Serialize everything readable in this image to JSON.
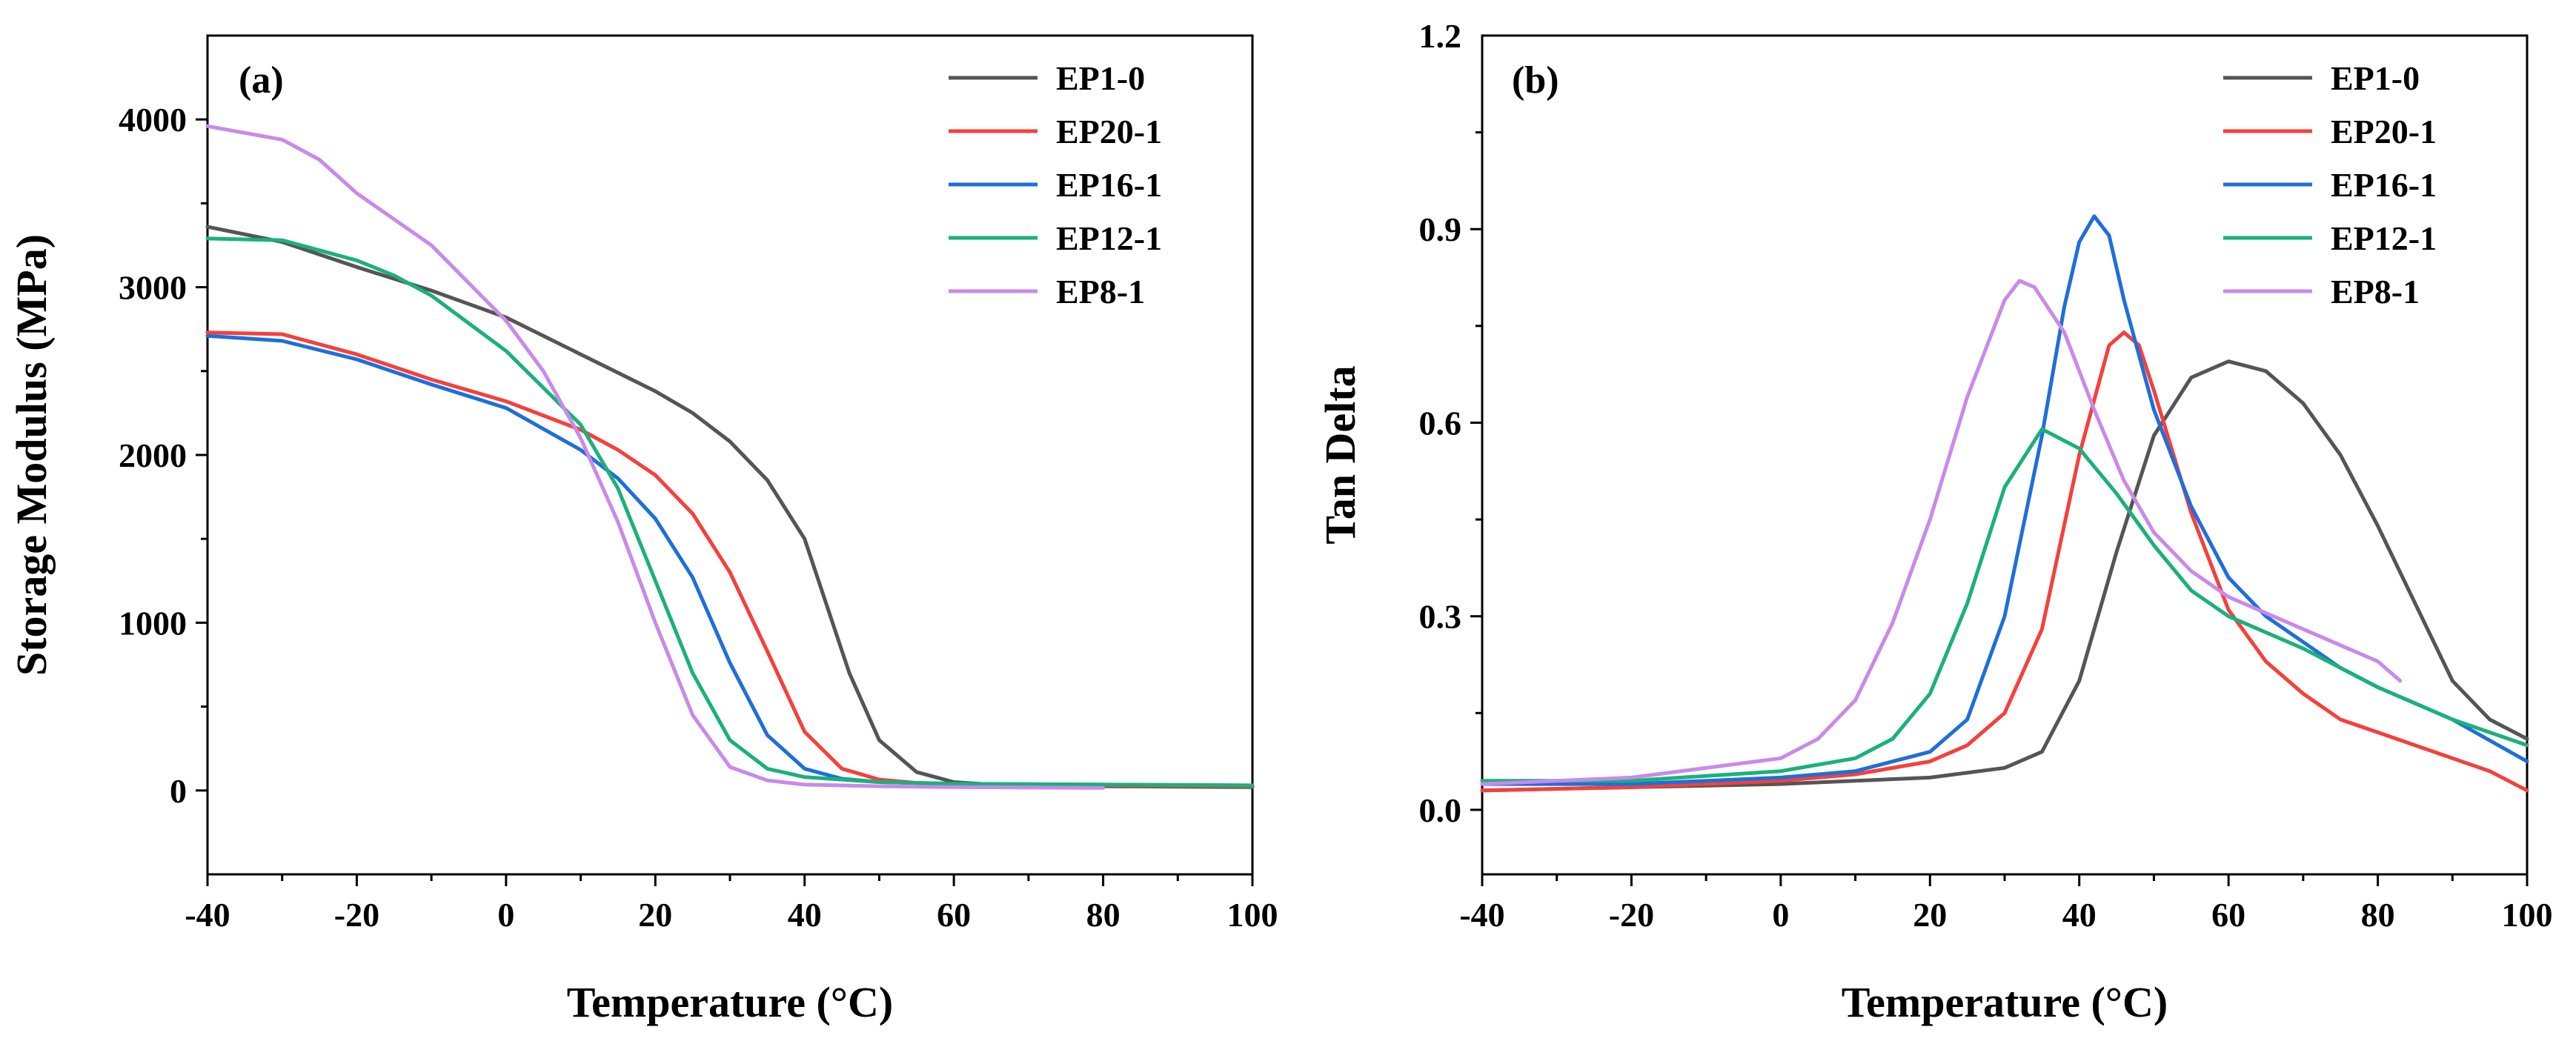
{
  "chart_data": [
    {
      "type": "line",
      "panel_label": "(a)",
      "xlabel": "Temperature (°C)",
      "ylabel": "Storage Modulus (MPa)",
      "xlim": [
        -40,
        100
      ],
      "ylim": [
        -500,
        4500
      ],
      "xticks": [
        -40,
        -20,
        0,
        20,
        40,
        60,
        80,
        100
      ],
      "yticks": [
        0,
        1000,
        2000,
        3000,
        4000
      ],
      "grid": false,
      "legend_position": "top-right",
      "series": [
        {
          "name": "EP1-0",
          "color": "#555555",
          "x": [
            -40,
            -30,
            -20,
            -10,
            0,
            10,
            20,
            25,
            30,
            35,
            40,
            43,
            46,
            50,
            55,
            60,
            65,
            70,
            80,
            100
          ],
          "y": [
            3360,
            3270,
            3120,
            2980,
            2820,
            2600,
            2380,
            2250,
            2080,
            1850,
            1500,
            1100,
            700,
            300,
            110,
            50,
            35,
            30,
            25,
            20
          ]
        },
        {
          "name": "EP20-1",
          "color": "#f5403b",
          "x": [
            -40,
            -30,
            -20,
            -10,
            0,
            10,
            15,
            20,
            25,
            30,
            35,
            40,
            45,
            50,
            55,
            60,
            80,
            100
          ],
          "y": [
            2730,
            2720,
            2600,
            2450,
            2320,
            2150,
            2030,
            1880,
            1650,
            1300,
            830,
            350,
            130,
            65,
            45,
            38,
            30,
            25
          ]
        },
        {
          "name": "EP16-1",
          "color": "#1e6fd9",
          "x": [
            -40,
            -30,
            -20,
            -10,
            0,
            10,
            15,
            20,
            25,
            30,
            35,
            40,
            45,
            50,
            60,
            80,
            100
          ],
          "y": [
            2710,
            2680,
            2570,
            2420,
            2280,
            2030,
            1860,
            1620,
            1270,
            760,
            330,
            130,
            70,
            50,
            40,
            35,
            30
          ]
        },
        {
          "name": "EP12-1",
          "color": "#1ab17a",
          "x": [
            -40,
            -30,
            -20,
            -15,
            -10,
            0,
            10,
            15,
            20,
            25,
            30,
            35,
            40,
            50,
            60,
            80,
            100
          ],
          "y": [
            3290,
            3280,
            3160,
            3070,
            2950,
            2620,
            2180,
            1800,
            1250,
            700,
            300,
            130,
            80,
            50,
            40,
            35,
            30
          ]
        },
        {
          "name": "EP8-1",
          "color": "#c98ae8",
          "x": [
            -40,
            -30,
            -25,
            -20,
            -10,
            0,
            5,
            10,
            15,
            20,
            25,
            30,
            35,
            40,
            50,
            60,
            80
          ],
          "y": [
            3960,
            3880,
            3760,
            3560,
            3250,
            2800,
            2500,
            2100,
            1600,
            1000,
            450,
            140,
            60,
            35,
            25,
            20,
            15
          ]
        }
      ]
    },
    {
      "type": "line",
      "panel_label": "(b)",
      "xlabel": "Temperature (°C)",
      "ylabel": "Tan Delta",
      "xlim": [
        -40,
        100
      ],
      "ylim": [
        -0.1,
        1.2
      ],
      "xticks": [
        -40,
        -20,
        0,
        20,
        40,
        60,
        80,
        100
      ],
      "yticks": [
        "0.0",
        "0.3",
        "0.6",
        "0.9",
        "1.2"
      ],
      "grid": false,
      "legend_position": "top-right",
      "series": [
        {
          "name": "EP1-0",
          "color": "#555555",
          "x": [
            -40,
            -20,
            0,
            20,
            30,
            35,
            40,
            45,
            50,
            55,
            60,
            65,
            70,
            75,
            80,
            85,
            90,
            95,
            100
          ],
          "y": [
            0.03,
            0.035,
            0.04,
            0.05,
            0.065,
            0.09,
            0.2,
            0.4,
            0.58,
            0.67,
            0.695,
            0.68,
            0.63,
            0.55,
            0.44,
            0.32,
            0.2,
            0.14,
            0.11
          ]
        },
        {
          "name": "EP20-1",
          "color": "#f5403b",
          "x": [
            -40,
            -20,
            0,
            10,
            20,
            25,
            30,
            35,
            40,
            44,
            46,
            48,
            50,
            55,
            60,
            65,
            70,
            75,
            80,
            90,
            95,
            100
          ],
          "y": [
            0.03,
            0.035,
            0.045,
            0.055,
            0.075,
            0.1,
            0.15,
            0.28,
            0.55,
            0.72,
            0.74,
            0.72,
            0.65,
            0.46,
            0.31,
            0.23,
            0.18,
            0.14,
            0.12,
            0.08,
            0.06,
            0.03
          ]
        },
        {
          "name": "EP16-1",
          "color": "#1e6fd9",
          "x": [
            -40,
            -20,
            0,
            10,
            20,
            25,
            30,
            35,
            38,
            40,
            42,
            44,
            46,
            50,
            55,
            60,
            65,
            70,
            75,
            80,
            90,
            100
          ],
          "y": [
            0.04,
            0.04,
            0.05,
            0.06,
            0.09,
            0.14,
            0.3,
            0.58,
            0.78,
            0.88,
            0.92,
            0.89,
            0.79,
            0.62,
            0.47,
            0.36,
            0.3,
            0.26,
            0.22,
            0.19,
            0.14,
            0.075
          ]
        },
        {
          "name": "EP12-1",
          "color": "#1ab17a",
          "x": [
            -40,
            -20,
            0,
            10,
            15,
            20,
            25,
            30,
            35,
            40,
            45,
            50,
            55,
            60,
            70,
            80,
            90,
            100
          ],
          "y": [
            0.045,
            0.045,
            0.06,
            0.08,
            0.11,
            0.18,
            0.32,
            0.5,
            0.59,
            0.56,
            0.49,
            0.41,
            0.34,
            0.3,
            0.25,
            0.19,
            0.14,
            0.1
          ]
        },
        {
          "name": "EP8-1",
          "color": "#c98ae8",
          "x": [
            -40,
            -20,
            0,
            5,
            10,
            15,
            20,
            25,
            30,
            32,
            34,
            38,
            42,
            46,
            50,
            55,
            60,
            70,
            80,
            83
          ],
          "y": [
            0.04,
            0.05,
            0.08,
            0.11,
            0.17,
            0.29,
            0.45,
            0.64,
            0.79,
            0.82,
            0.81,
            0.74,
            0.62,
            0.51,
            0.43,
            0.37,
            0.33,
            0.28,
            0.23,
            0.2
          ]
        }
      ]
    }
  ]
}
